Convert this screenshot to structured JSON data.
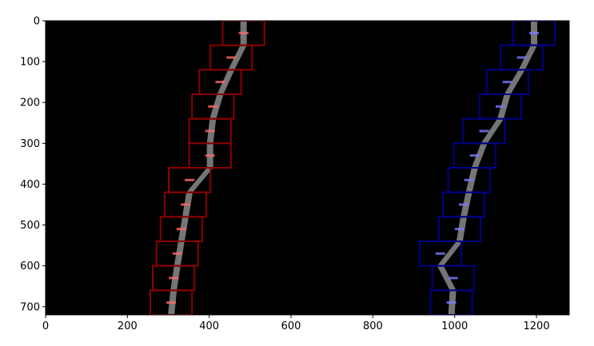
{
  "chart_data": {
    "type": "image",
    "title": "",
    "xlabel": "",
    "ylabel": "",
    "xlim": [
      0,
      1280
    ],
    "ylim": [
      720,
      0
    ],
    "x_ticks": [
      0,
      200,
      400,
      600,
      800,
      1000,
      1200
    ],
    "y_ticks": [
      0,
      100,
      200,
      300,
      400,
      500,
      600,
      700
    ],
    "x_tick_labels": [
      "0",
      "200",
      "400",
      "600",
      "800",
      "1000",
      "1200"
    ],
    "y_tick_labels": [
      "0",
      "100",
      "200",
      "300",
      "400",
      "500",
      "600",
      "700"
    ],
    "background_color": "#000000",
    "lane_pixel_color": "#8a8a8a",
    "series": [
      {
        "color": "#8b0000",
        "highlight_color": "#ff6a6a",
        "windows": [
          {
            "x": [
              256,
              358
            ],
            "y": [
              660,
              720
            ]
          },
          {
            "x": [
              262,
              364
            ],
            "y": [
              600,
              660
            ]
          },
          {
            "x": [
              271,
              373
            ],
            "y": [
              540,
              600
            ]
          },
          {
            "x": [
              281,
              383
            ],
            "y": [
              480,
              540
            ]
          },
          {
            "x": [
              291,
              393
            ],
            "y": [
              420,
              480
            ]
          },
          {
            "x": [
              301,
              403
            ],
            "y": [
              360,
              420
            ]
          },
          {
            "x": [
              351,
              453
            ],
            "y": [
              300,
              360
            ]
          },
          {
            "x": [
              351,
              453
            ],
            "y": [
              240,
              300
            ]
          },
          {
            "x": [
              358,
              460
            ],
            "y": [
              180,
              240
            ]
          },
          {
            "x": [
              376,
              478
            ],
            "y": [
              120,
              180
            ]
          },
          {
            "x": [
              403,
              505
            ],
            "y": [
              60,
              120
            ]
          },
          {
            "x": [
              433,
              535
            ],
            "y": [
              0,
              60
            ]
          }
        ]
      },
      {
        "color": "#00008b",
        "highlight_color": "#7a7aff",
        "windows": [
          {
            "x": [
              941,
              1043
            ],
            "y": [
              660,
              720
            ]
          },
          {
            "x": [
              945,
              1047
            ],
            "y": [
              600,
              660
            ]
          },
          {
            "x": [
              914,
              1016
            ],
            "y": [
              540,
              600
            ]
          },
          {
            "x": [
              961,
              1063
            ],
            "y": [
              480,
              540
            ]
          },
          {
            "x": [
              971,
              1073
            ],
            "y": [
              420,
              480
            ]
          },
          {
            "x": [
              984,
              1086
            ],
            "y": [
              360,
              420
            ]
          },
          {
            "x": [
              998,
              1100
            ],
            "y": [
              300,
              360
            ]
          },
          {
            "x": [
              1021,
              1123
            ],
            "y": [
              240,
              300
            ]
          },
          {
            "x": [
              1061,
              1163
            ],
            "y": [
              180,
              240
            ]
          },
          {
            "x": [
              1078,
              1180
            ],
            "y": [
              120,
              180
            ]
          },
          {
            "x": [
              1113,
              1215
            ],
            "y": [
              60,
              120
            ]
          },
          {
            "x": [
              1143,
              1245
            ],
            "y": [
              0,
              60
            ]
          }
        ]
      }
    ]
  }
}
